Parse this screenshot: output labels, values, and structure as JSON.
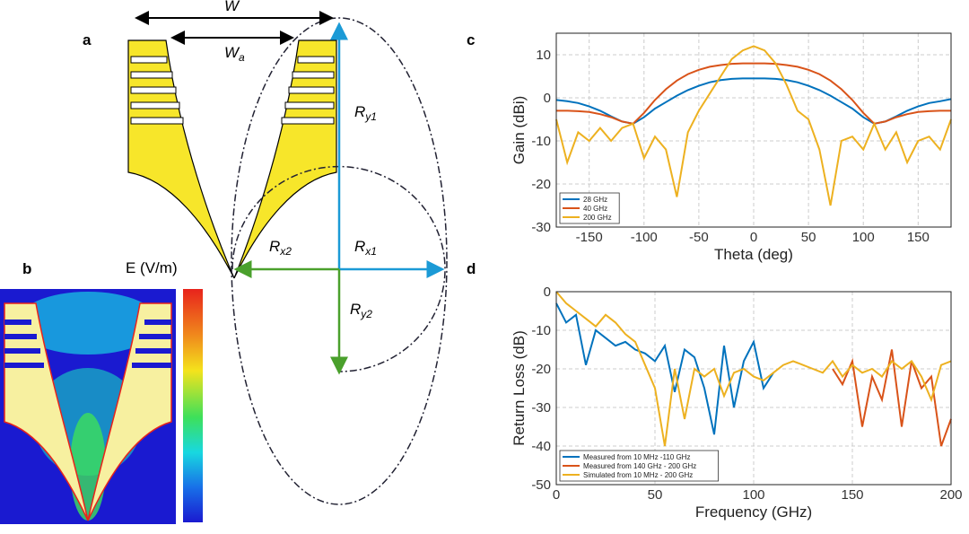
{
  "panels": [
    "a",
    "b",
    "c",
    "d"
  ],
  "diagram": {
    "W": "W",
    "Wa": [
      "W",
      "a"
    ],
    "Ry1": [
      "R",
      "y1"
    ],
    "Rx1": [
      "R",
      "x1"
    ],
    "Rx2": [
      "R",
      "x2"
    ],
    "Ry2": [
      "R",
      "y2"
    ],
    "colorbar_label": "E (V/m)"
  },
  "chart_data": [
    {
      "type": "line",
      "xlabel": "Theta (deg)",
      "ylabel": "Gain (dBi)",
      "xlim": [
        -180,
        180
      ],
      "xticks": [
        -150,
        -100,
        -50,
        0,
        50,
        100,
        150
      ],
      "ylim": [
        -30,
        15
      ],
      "yticks": [
        -30,
        -20,
        -10,
        0,
        10
      ],
      "grid": true,
      "legend": "lower left",
      "x": [
        -180,
        -170,
        -160,
        -150,
        -140,
        -130,
        -120,
        -110,
        -100,
        -90,
        -80,
        -70,
        -60,
        -50,
        -40,
        -30,
        -20,
        -10,
        0,
        10,
        20,
        30,
        40,
        50,
        60,
        70,
        80,
        90,
        100,
        110,
        120,
        130,
        140,
        150,
        160,
        170,
        180
      ],
      "series": [
        {
          "name": "28 GHz",
          "color": "#0072BD",
          "values": [
            -0.5,
            -0.8,
            -1.2,
            -2,
            -3,
            -4.3,
            -5.5,
            -6,
            -4.5,
            -2.5,
            -1,
            0.5,
            1.8,
            2.8,
            3.6,
            4.1,
            4.4,
            4.5,
            4.5,
            4.5,
            4.4,
            4.1,
            3.6,
            2.8,
            1.8,
            0.5,
            -1,
            -2.5,
            -4.5,
            -6,
            -5.5,
            -4.3,
            -3,
            -2,
            -1.2,
            -0.8,
            -0.3
          ]
        },
        {
          "name": "40 GHz",
          "color": "#D95319",
          "values": [
            -3,
            -3,
            -3.1,
            -3.3,
            -3.8,
            -4.5,
            -5.5,
            -6,
            -3.5,
            -0.5,
            2,
            4,
            5.5,
            6.5,
            7.2,
            7.6,
            7.9,
            8,
            8,
            8,
            7.9,
            7.6,
            7.2,
            6.5,
            5.5,
            4,
            2,
            -0.5,
            -3.5,
            -6,
            -5.5,
            -4.5,
            -3.8,
            -3.3,
            -3.1,
            -3,
            -3
          ]
        },
        {
          "name": "200 GHz",
          "color": "#EDB120",
          "values": [
            -5,
            -15,
            -8,
            -10,
            -7,
            -10,
            -7,
            -6,
            -14,
            -9,
            -12,
            -23,
            -8,
            -3,
            1,
            5,
            9,
            11,
            12,
            11,
            8,
            3,
            -3,
            -5,
            -12,
            -25,
            -10,
            -9,
            -12,
            -6,
            -12,
            -8,
            -15,
            -10,
            -9,
            -12,
            -5
          ]
        }
      ]
    },
    {
      "type": "line",
      "xlabel": "Frequency (GHz)",
      "ylabel": "Return Loss (dB)",
      "xlim": [
        0,
        200
      ],
      "xticks": [
        0,
        50,
        100,
        150,
        200
      ],
      "ylim": [
        -50,
        0
      ],
      "yticks": [
        -50,
        -40,
        -30,
        -20,
        -10,
        0
      ],
      "grid": true,
      "legend": "lower left",
      "x": [
        0,
        5,
        10,
        15,
        20,
        25,
        30,
        35,
        40,
        45,
        50,
        55,
        60,
        65,
        70,
        75,
        80,
        85,
        90,
        95,
        100,
        105,
        110,
        115,
        120,
        125,
        130,
        135,
        140,
        145,
        150,
        155,
        160,
        165,
        170,
        175,
        180,
        185,
        190,
        195,
        200
      ],
      "series": [
        {
          "name": "Measured from 10 MHz -110 GHz",
          "color": "#0072BD",
          "values": [
            -3,
            -8,
            -6,
            -19,
            -10,
            -12,
            -14,
            -13,
            -15,
            -16,
            -18,
            -14,
            -26,
            -15,
            -17,
            -25,
            -37,
            -14,
            -30,
            -18,
            -13,
            -25,
            -21,
            null,
            null,
            null,
            null,
            null,
            null,
            null,
            null,
            null,
            null,
            null,
            null,
            null,
            null,
            null,
            null,
            null,
            null
          ]
        },
        {
          "name": "Measured from 140 GHz - 200 GHz",
          "color": "#D95319",
          "values": [
            null,
            null,
            null,
            null,
            null,
            null,
            null,
            null,
            null,
            null,
            null,
            null,
            null,
            null,
            null,
            null,
            null,
            null,
            null,
            null,
            null,
            null,
            null,
            null,
            null,
            null,
            null,
            null,
            -20,
            -24,
            -18,
            -35,
            -22,
            -28,
            -15,
            -35,
            -18,
            -25,
            -22,
            -40,
            -33
          ]
        },
        {
          "name": "Simulated from 10 MHz - 200 GHz",
          "color": "#EDB120",
          "values": [
            0,
            -3,
            -5,
            -7,
            -9,
            -6,
            -8,
            -11,
            -13,
            -19,
            -25,
            -40,
            -20,
            -33,
            -20,
            -22,
            -20,
            -27,
            -21,
            -20,
            -22,
            -23,
            -21,
            -19,
            -18,
            -19,
            -20,
            -21,
            -18,
            -22,
            -19,
            -21,
            -20,
            -22,
            -18,
            -20,
            -18,
            -22,
            -28,
            -19,
            -18
          ]
        }
      ]
    }
  ]
}
